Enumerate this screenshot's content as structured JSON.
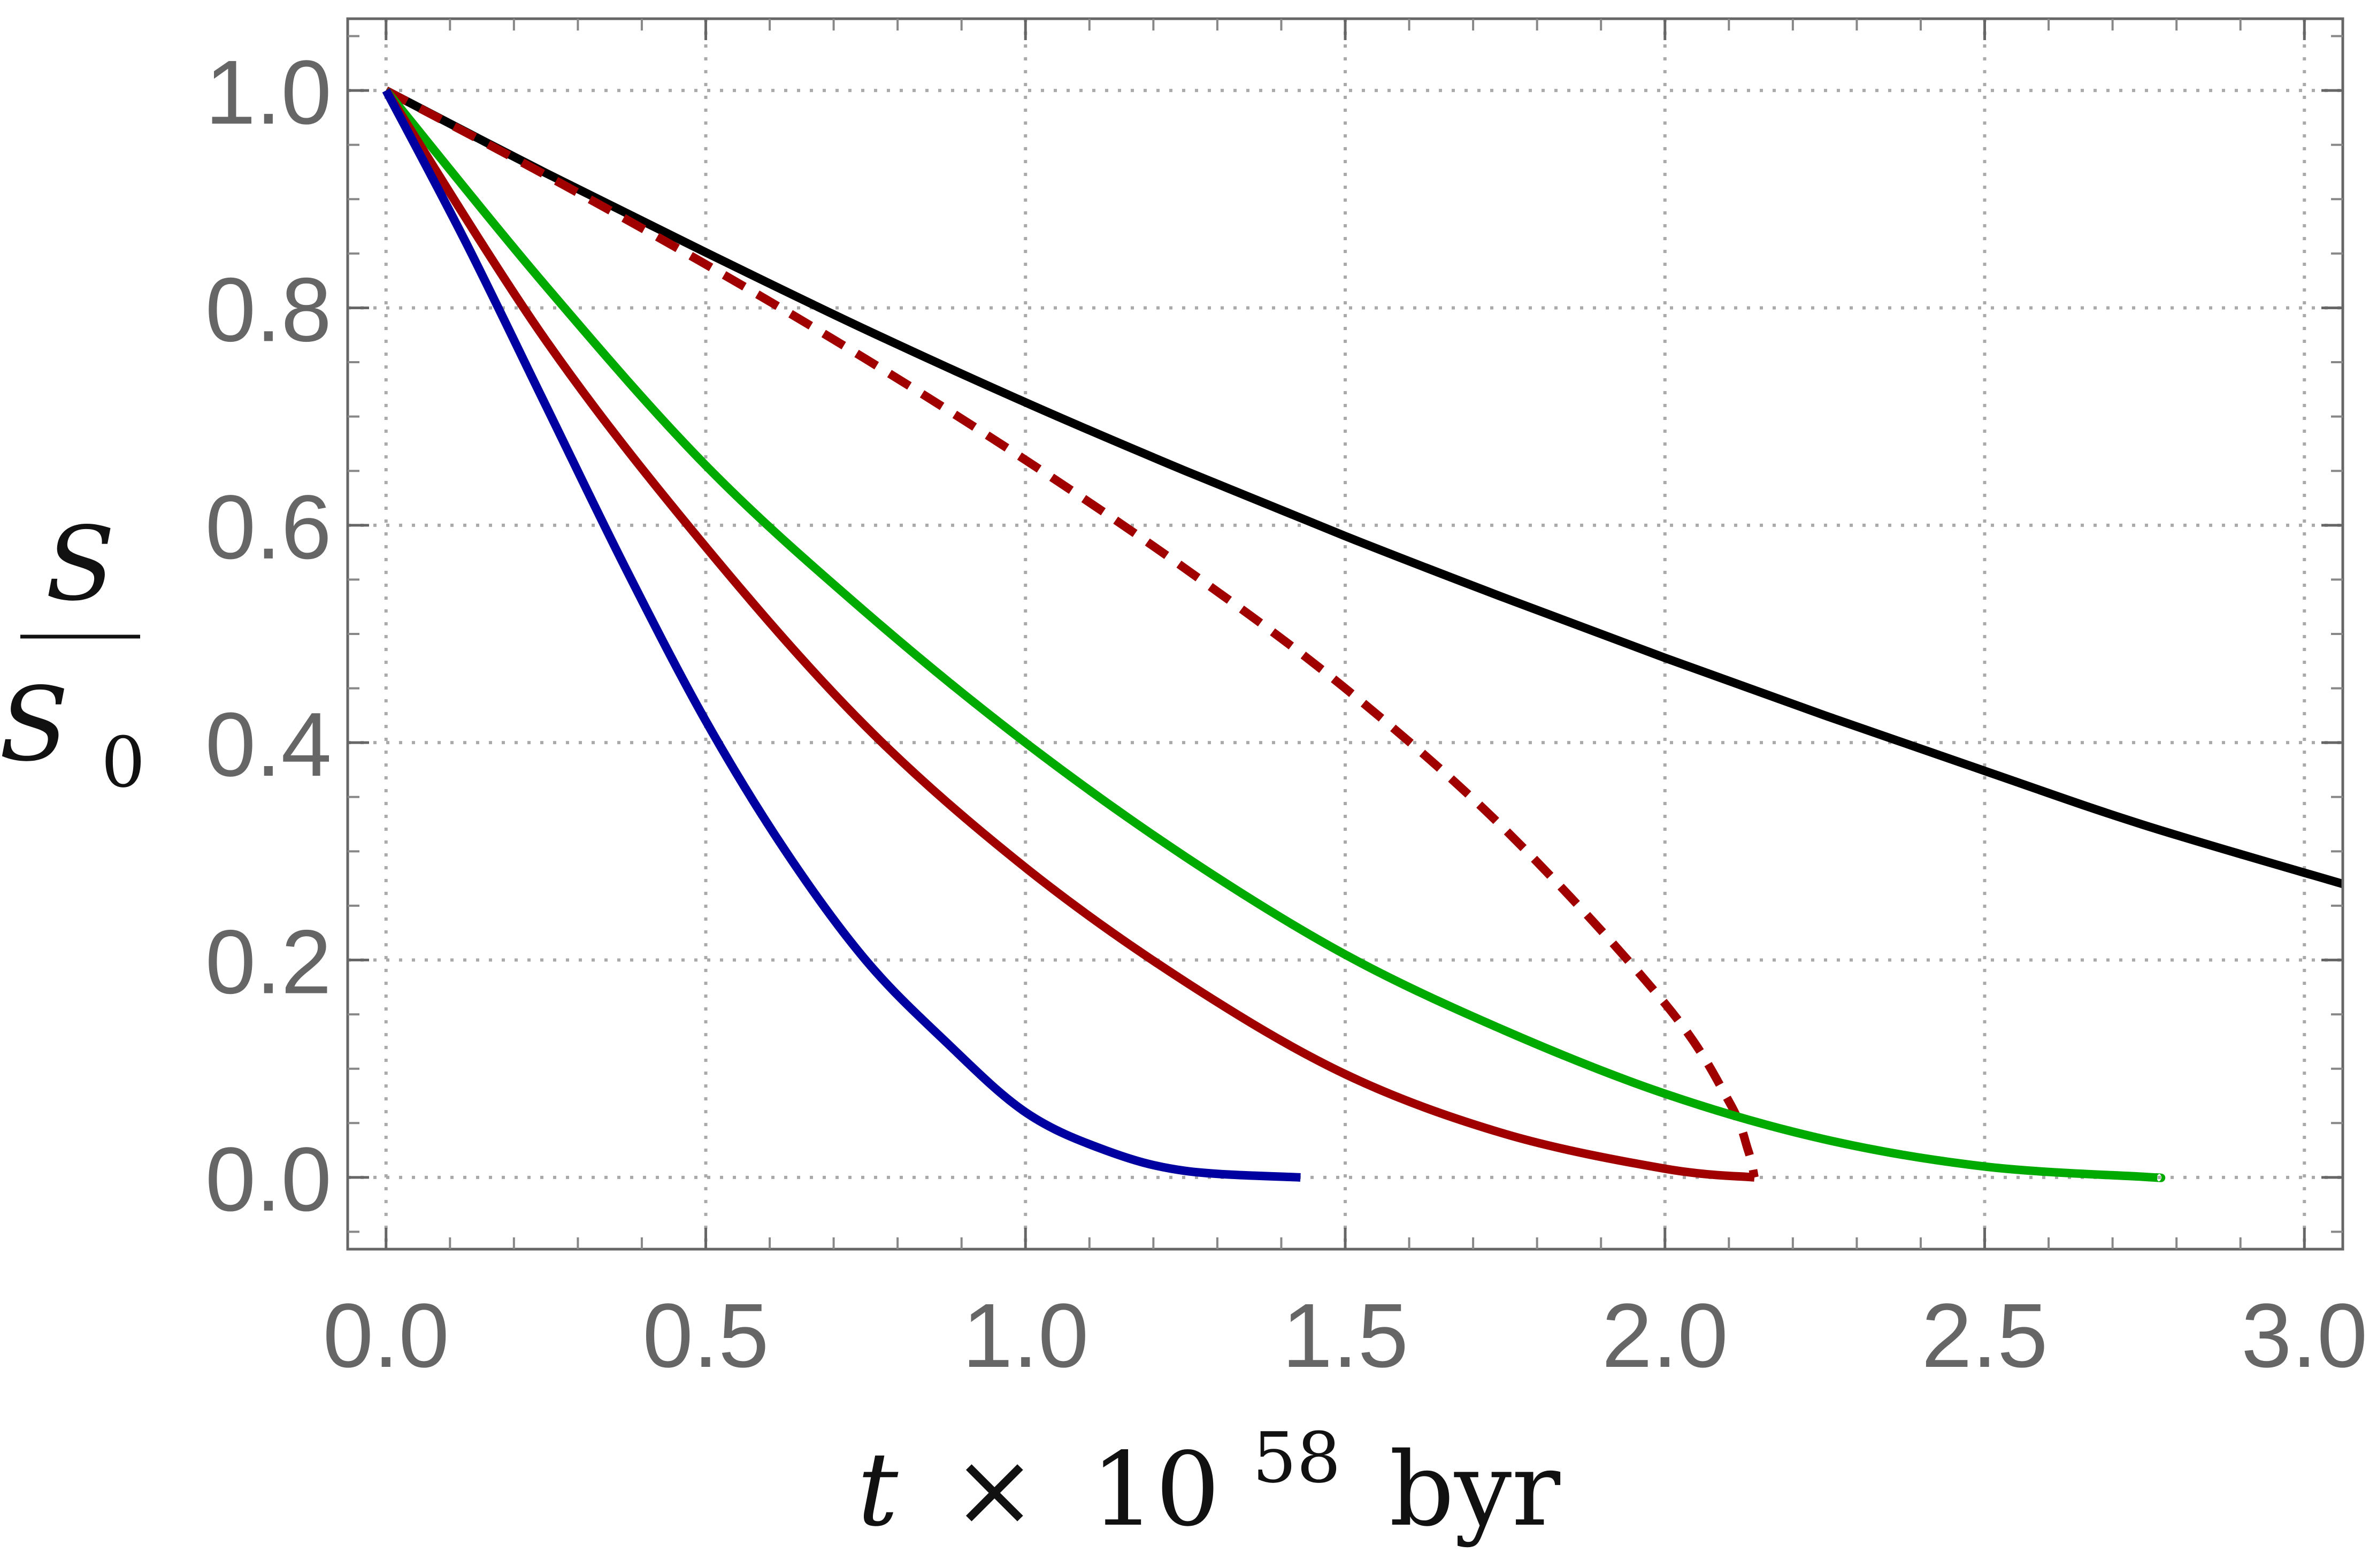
{
  "chart_data": {
    "type": "line",
    "xlabel": {
      "var": "t",
      "times": "×",
      "base": "10",
      "exp": "58",
      "unit": "byr"
    },
    "ylabel": {
      "num": "S",
      "den": "S",
      "den_sub": "0"
    },
    "xlim": [
      -0.06,
      3.06
    ],
    "ylim": [
      -0.066,
      1.066
    ],
    "xticks": [
      0.0,
      0.5,
      1.0,
      1.5,
      2.0,
      2.5,
      3.0
    ],
    "xtick_labels": [
      "0.0",
      "0.5",
      "1.0",
      "1.5",
      "2.0",
      "2.5",
      "3.0"
    ],
    "yticks": [
      0.0,
      0.2,
      0.4,
      0.6,
      0.8,
      1.0
    ],
    "ytick_labels": [
      "0.0",
      "0.2",
      "0.4",
      "0.6",
      "0.8",
      "1.0"
    ],
    "grid": true,
    "series": [
      {
        "color": "#000000",
        "style": "solid",
        "x": [
          0,
          0.25,
          0.5,
          0.75,
          1.0,
          1.25,
          1.5,
          1.75,
          2.0,
          2.25,
          2.5,
          2.75,
          3.06
        ],
        "y": [
          1.0,
          0.924,
          0.851,
          0.78,
          0.713,
          0.65,
          0.59,
          0.533,
          0.478,
          0.425,
          0.374,
          0.324,
          0.27
        ]
      },
      {
        "color": "#A00000",
        "style": "dashed",
        "x": [
          0,
          0.25,
          0.5,
          0.75,
          1.0,
          1.25,
          1.5,
          1.75,
          2.0,
          2.1,
          2.13,
          2.14
        ],
        "y": [
          1.0,
          0.922,
          0.84,
          0.753,
          0.66,
          0.56,
          0.45,
          0.32,
          0.16,
          0.07,
          0.025,
          0.0
        ]
      },
      {
        "color": "#00AA00",
        "style": "solid",
        "x": [
          0,
          0.25,
          0.5,
          0.75,
          1.0,
          1.25,
          1.5,
          1.75,
          2.0,
          2.25,
          2.5,
          2.75,
          2.77
        ],
        "y": [
          1.0,
          0.82,
          0.655,
          0.52,
          0.4,
          0.295,
          0.205,
          0.135,
          0.077,
          0.035,
          0.01,
          0.0005,
          0.0
        ]
      },
      {
        "color": "#A00000",
        "style": "solid",
        "x": [
          0,
          0.25,
          0.5,
          0.75,
          1.0,
          1.25,
          1.5,
          1.75,
          2.0,
          2.14
        ],
        "y": [
          1.0,
          0.77,
          0.58,
          0.415,
          0.285,
          0.18,
          0.095,
          0.04,
          0.008,
          0.0
        ]
      },
      {
        "color": "#0000A0",
        "style": "solid",
        "x": [
          0,
          0.125,
          0.25,
          0.375,
          0.5,
          0.625,
          0.75,
          0.875,
          1.0,
          1.125,
          1.25,
          1.43
        ],
        "y": [
          1.0,
          0.86,
          0.71,
          0.56,
          0.42,
          0.3,
          0.2,
          0.125,
          0.06,
          0.025,
          0.006,
          0.0
        ]
      }
    ]
  }
}
